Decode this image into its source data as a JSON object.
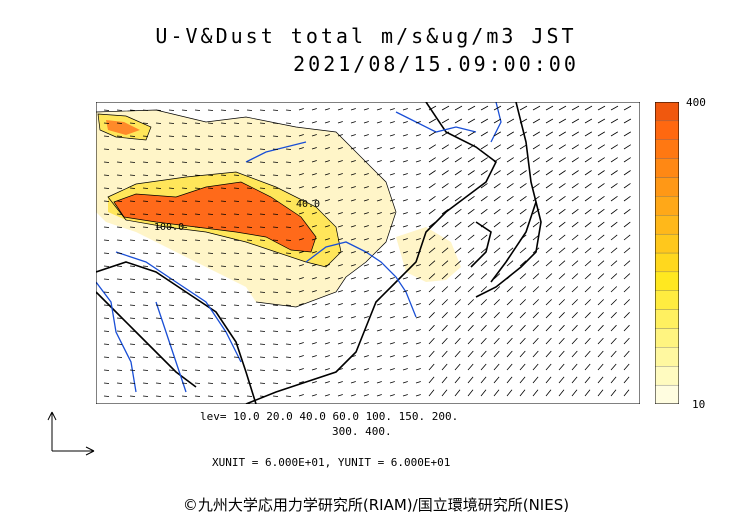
{
  "title": {
    "line1": "U-V&Dust total m/s&ug/m3 JST",
    "line2": "2021/08/15.09:00:00"
  },
  "legend": {
    "max_label": "400",
    "min_label": "10",
    "colors": [
      "#fffde0",
      "#fffbc0",
      "#fff8a0",
      "#fff480",
      "#fff060",
      "#ffec40",
      "#ffe820",
      "#ffd81e",
      "#ffc81c",
      "#ffb81a",
      "#ffa818",
      "#ff9816",
      "#ff8814",
      "#ff7812",
      "#ff6810",
      "#f0580e"
    ]
  },
  "levels": {
    "line1": "lev= 10.0 20.0 40.0 60.0 100. 150. 200.",
    "line2": "300. 400."
  },
  "units": "XUNIT = 6.000E+01, YUNIT = 6.000E+01",
  "credit": "©九州大学応用力学研究所(RIAM)/国立環境研究所(NIES)",
  "map": {
    "contour_labels": [
      "40.0",
      "100.0"
    ],
    "colors": {
      "coast": "#000000",
      "rivers": "#1a4fd6",
      "dust_low": "#fff5c8",
      "dust_mid": "#ffe65a",
      "dust_high": "#ff6a1a"
    }
  }
}
